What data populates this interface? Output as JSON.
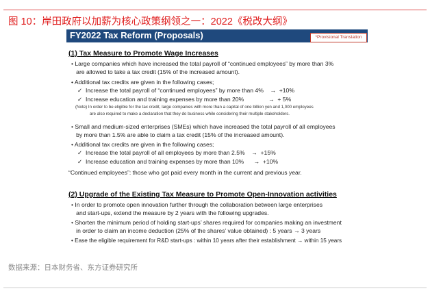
{
  "figure_title": "图 10：岸田政府以加薪为核心政策纲领之一：2022《税改大纲》",
  "slide": {
    "header": "FY2022 Tax Reform (Proposals)",
    "badge": "*Provisional Translation",
    "section1": {
      "heading": "(1) Tax Measure to Promote Wage Increases",
      "lines": [
        "• Large companies which have increased the total payroll of “continued employees” by more than 3%",
        "   are allowed to take a tax credit (15% of the increased amount).",
        "• Additional tax credits are given in the following cases;",
        "✓  Increase the total payroll of “continued employees” by more than 4%    →  +10%",
        "✓  Increase education and training expenses by more than 20%               →  + 5%",
        "(Note) In order to be eligible for the tax credit, large companies with more than a capital of one billion yen and 1,000 employees",
        "are also required to make a declaration that they do business while considering their multiple stakeholders.",
        "• Small and medium-sized enterprises (SMEs) which have increased the total payroll of all employees",
        "   by more than 1.5% are able to claim a tax credit (15% of the increased amount).",
        "• Additional tax credits are given in the following cases;",
        "✓  Increase the total payroll of all employees by more than 2.5%    →  +15%",
        "✓  Increase education and training expenses by more than 10%      →  +10%",
        "“Continued employees”: those who got paid every month in the current and previous year."
      ]
    },
    "section2": {
      "heading": "(2) Upgrade of the Existing Tax Measure to Promote Open-Innovation activities",
      "lines": [
        "• In order to promote open innovation further through the collaboration between large enterprises",
        "   and start-ups, extend the measure by 2 years with the following upgrades.",
        "• Shorten the minimum period of holding start-ups’ shares required for companies making an investment",
        "   in order to claim an income deduction (25% of the shares’ value obtained) : 5 years → 3 years",
        "• Ease the eligible requirement for R&D start-ups : within 10 years after their establishment → within 15 years"
      ]
    }
  },
  "source": "数据来源：日本财务省、东方证券研究所"
}
